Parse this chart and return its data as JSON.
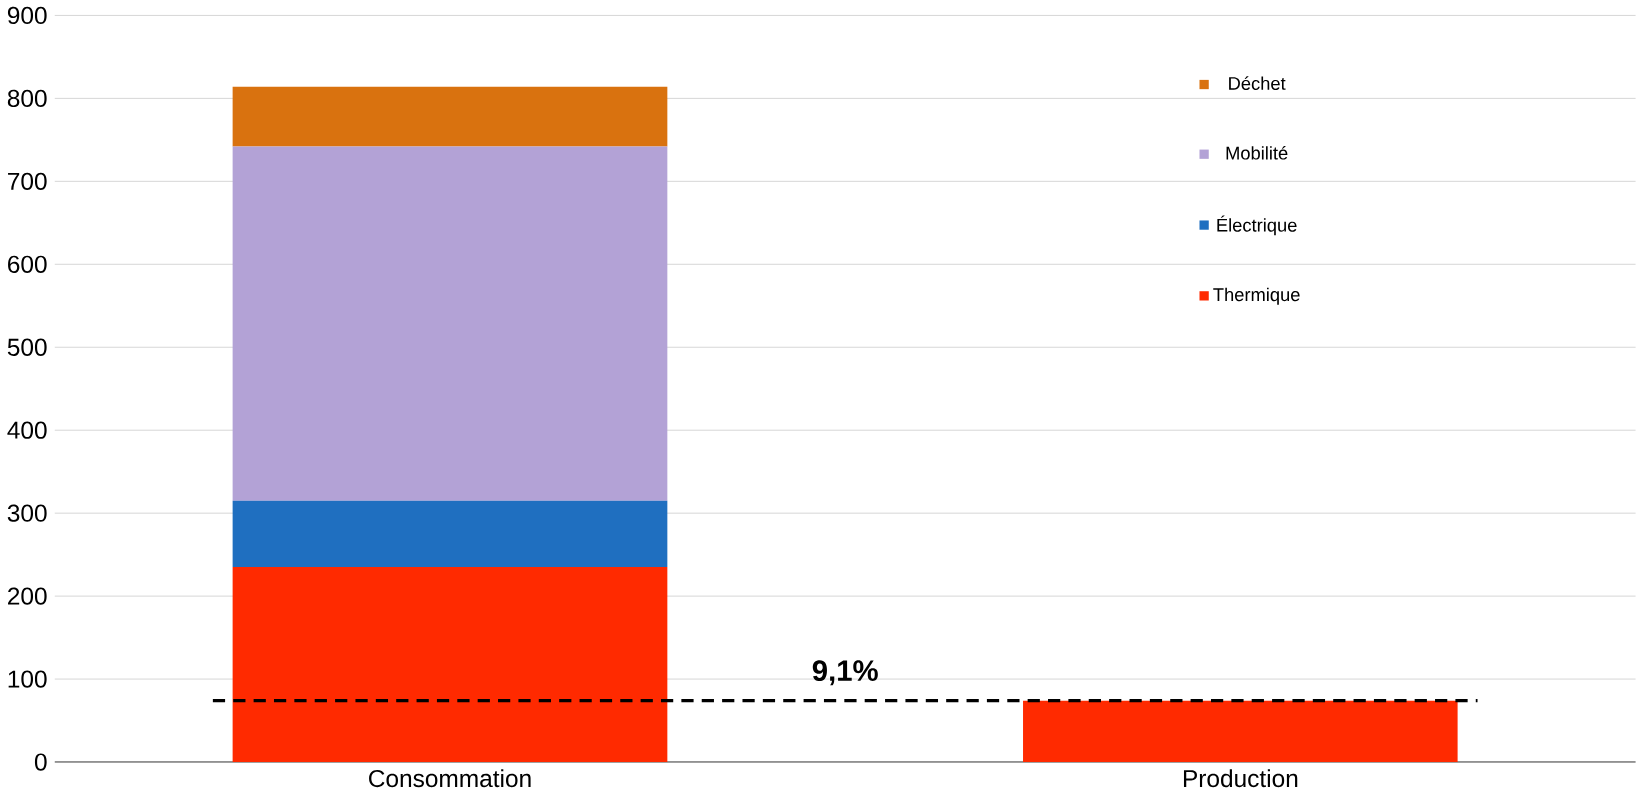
{
  "chart_data": {
    "type": "bar",
    "stacked": true,
    "categories": [
      "Consommation",
      "Production"
    ],
    "series": [
      {
        "name": "Thermique",
        "color": "#ff2a00",
        "values": [
          235,
          74
        ]
      },
      {
        "name": "Électrique",
        "color": "#1f6fc0",
        "values": [
          80,
          null
        ]
      },
      {
        "name": "Mobilité",
        "color": "#b3a2d6",
        "values": [
          427,
          null
        ]
      },
      {
        "name": "Déchet",
        "color": "#d9720f",
        "values": [
          72,
          null
        ]
      }
    ],
    "ylim": [
      0,
      900
    ],
    "yticks": [
      0,
      100,
      200,
      300,
      400,
      500,
      600,
      700,
      800,
      900
    ],
    "grid": "y",
    "legend": "right",
    "ref_lines": [
      {
        "axis": "y",
        "value": 74,
        "color": "#000000",
        "line_style": "dashed"
      }
    ],
    "annotations": [
      "9,1%"
    ]
  }
}
